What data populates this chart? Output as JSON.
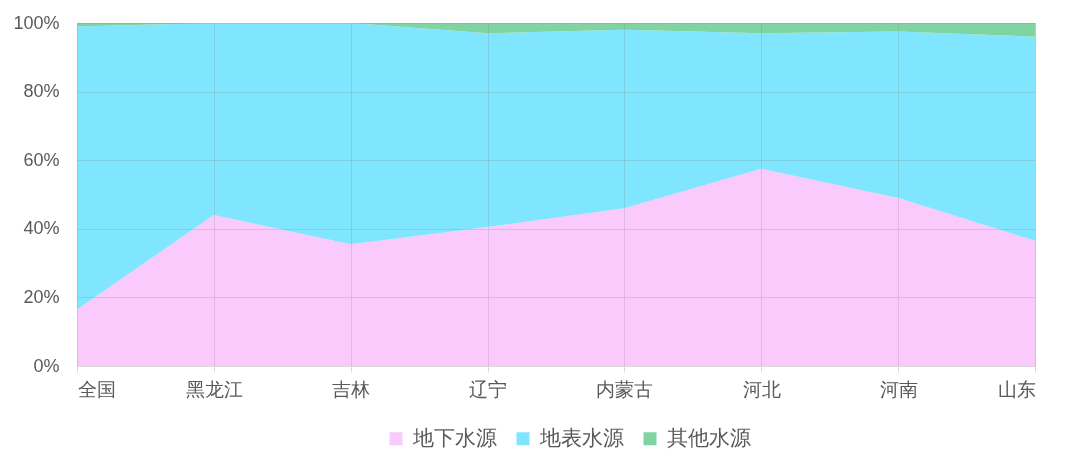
{
  "chart_data": {
    "type": "area",
    "stacked": true,
    "categories": [
      "全国",
      "黑龙江",
      "吉林",
      "辽宁",
      "内蒙古",
      "河北",
      "河南",
      "山东"
    ],
    "series": [
      {
        "name": "地下水源",
        "color": "#fbcafc",
        "values": [
          16.5,
          44,
          35.5,
          40.5,
          46,
          57.5,
          49,
          36.5
        ]
      },
      {
        "name": "地表水源",
        "color": "#80e5fe",
        "values": [
          82.5,
          56,
          64.5,
          56.5,
          52,
          39.5,
          48.5,
          59.5
        ]
      },
      {
        "name": "其他水源",
        "color": "#7fd4a2",
        "values": [
          1,
          0,
          0,
          3,
          2,
          3,
          2.5,
          4
        ]
      }
    ],
    "ylim": [
      0,
      100
    ],
    "yticks": [
      {
        "value": 0,
        "label": "0%"
      },
      {
        "value": 20,
        "label": "20%"
      },
      {
        "value": 40,
        "label": "40%"
      },
      {
        "value": 60,
        "label": "60%"
      },
      {
        "value": 80,
        "label": "80%"
      },
      {
        "value": 100,
        "label": "100%"
      }
    ],
    "grid": true,
    "legend": "bottom"
  }
}
